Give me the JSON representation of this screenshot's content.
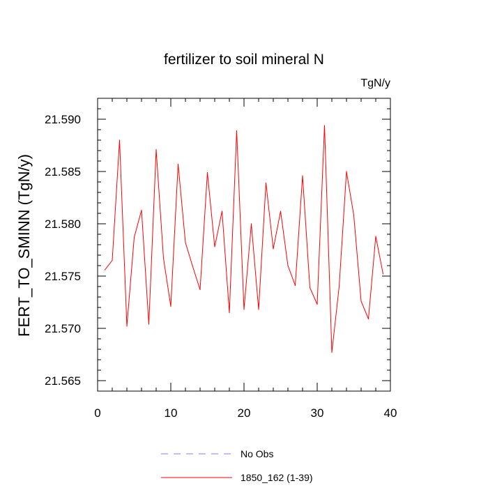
{
  "chart_data": {
    "type": "line",
    "title": "fertilizer to soil mineral N",
    "units_label": "TgN/y",
    "ylabel": "FERT_TO_SMINN  (TgN/y)",
    "xlabel": "",
    "xlim": [
      0,
      40
    ],
    "ylim": [
      21.564,
      21.592
    ],
    "x_ticks": [
      0,
      10,
      20,
      30,
      40
    ],
    "x_tick_labels": [
      "0",
      "10",
      "20",
      "30",
      "40"
    ],
    "y_ticks": [
      21.565,
      21.57,
      21.575,
      21.58,
      21.585,
      21.59
    ],
    "y_tick_labels": [
      "21.565",
      "21.570",
      "21.575",
      "21.580",
      "21.585",
      "21.590"
    ],
    "grid": false,
    "legend_position": "bottom-center",
    "series": [
      {
        "name": "1850_162 (1-39)",
        "color": "#ff0000",
        "style": "solid",
        "x": [
          1,
          2,
          3,
          4,
          5,
          6,
          7,
          8,
          9,
          10,
          11,
          12,
          13,
          14,
          15,
          16,
          17,
          18,
          19,
          20,
          21,
          22,
          23,
          24,
          25,
          26,
          27,
          28,
          29,
          30,
          31,
          32,
          33,
          34,
          35,
          36,
          37,
          38,
          39
        ],
        "values": [
          21.5756,
          21.5765,
          21.588,
          21.5702,
          21.5787,
          21.5813,
          21.5704,
          21.5871,
          21.5767,
          21.5721,
          21.5857,
          21.5782,
          21.5759,
          21.5737,
          21.5849,
          21.5778,
          21.5812,
          21.5715,
          21.5889,
          21.5718,
          21.58,
          21.5718,
          21.5839,
          21.5776,
          21.5812,
          21.576,
          21.5741,
          21.5846,
          21.5739,
          21.5723,
          21.5894,
          21.5677,
          21.574,
          21.585,
          21.5808,
          21.5726,
          21.5709,
          21.5788,
          21.5752
        ]
      }
    ],
    "legend": [
      {
        "label": "No Obs",
        "color": "#8080ff",
        "style": "dashed"
      },
      {
        "label": "1850_162 (1-39)",
        "color": "#ff0000",
        "style": "solid"
      }
    ]
  }
}
